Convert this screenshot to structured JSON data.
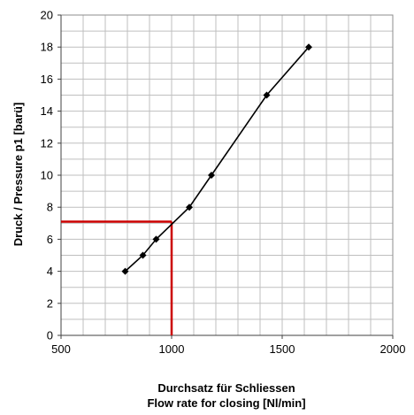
{
  "chart_data": {
    "type": "line",
    "xlabel_line1": "Durchsatz für Schliessen",
    "xlabel_line2": "Flow rate for closing [Nl/min]",
    "ylabel": "Druck / Pressure p1 [barü]",
    "xlim": [
      500,
      2000
    ],
    "ylim": [
      0,
      20
    ],
    "x_ticks": [
      500,
      1000,
      1500,
      2000
    ],
    "y_ticks": [
      0,
      2,
      4,
      6,
      8,
      10,
      12,
      14,
      16,
      18,
      20
    ],
    "x_minor_step": 100,
    "y_minor_step": 1,
    "grid": true,
    "series": [
      {
        "points": [
          {
            "x": 790,
            "y": 4
          },
          {
            "x": 870,
            "y": 5
          },
          {
            "x": 930,
            "y": 6
          },
          {
            "x": 1080,
            "y": 8
          },
          {
            "x": 1180,
            "y": 10
          },
          {
            "x": 1430,
            "y": 15
          },
          {
            "x": 1620,
            "y": 18
          }
        ],
        "color": "#000000",
        "marker": "diamond"
      }
    ],
    "annotation": {
      "x": 1000,
      "y": 7.1,
      "color": "#cc0000",
      "style": "reference-lines-to-axes"
    }
  }
}
